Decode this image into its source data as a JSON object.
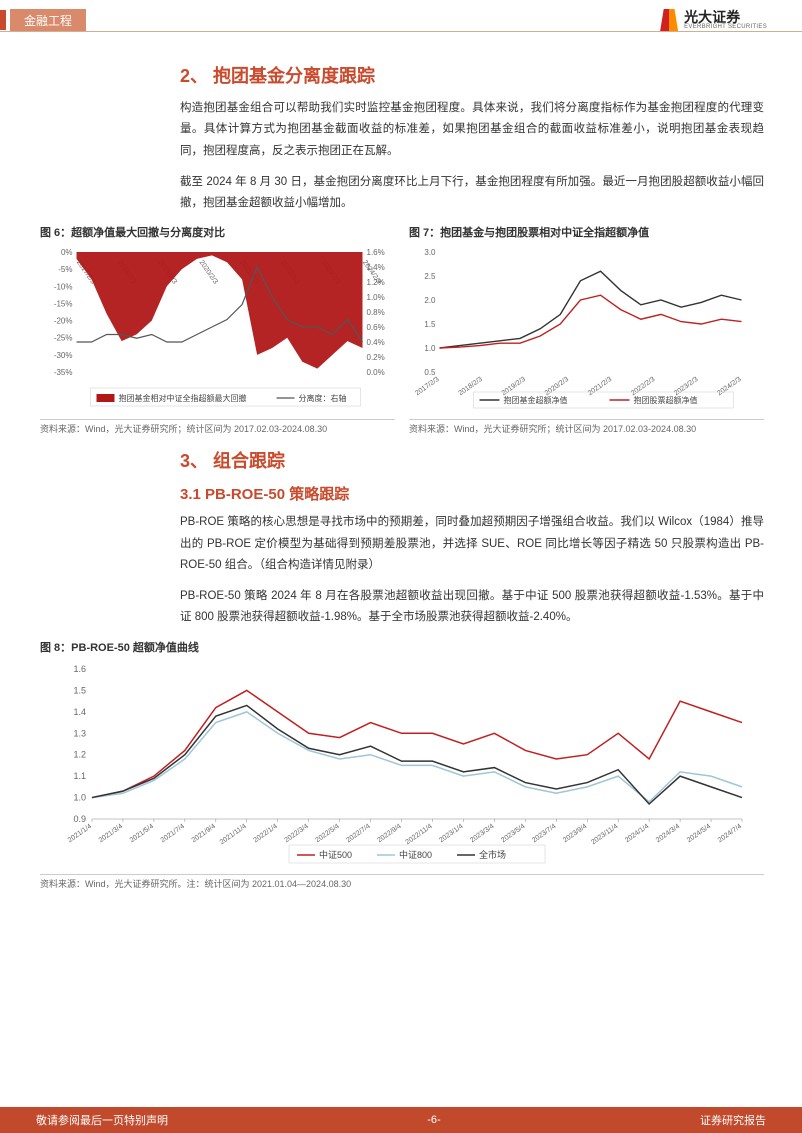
{
  "header": {
    "category": "金融工程",
    "logo_cn": "光大证券",
    "logo_en": "EVERBRIGHT SECURITIES"
  },
  "section2": {
    "title": "2、 抱团基金分离度跟踪",
    "para1": "构造抱团基金组合可以帮助我们实时监控基金抱团程度。具体来说，我们将分离度指标作为基金抱团程度的代理变量。具体计算方式为抱团基金截面收益的标准差，如果抱团基金组合的截面收益标准差小，说明抱团基金表现趋同，抱团程度高，反之表示抱团正在瓦解。",
    "para2": "截至 2024 年 8 月 30 日，基金抱团分离度环比上月下行，基金抱团程度有所加强。最近一月抱团股超额收益小幅回撤，抱团基金超额收益小幅增加。"
  },
  "chart6": {
    "title": "图 6：超额净值最大回撤与分离度对比",
    "source": "资料来源：Wind，光大证券研究所；统计区间为 2017.02.03-2024.08.30",
    "type": "dual-axis-area-line",
    "x_labels": [
      "2017/2/3",
      "2018/2/3",
      "2019/2/3",
      "2020/2/3",
      "2021/2/3",
      "2022/2/3",
      "2023/2/3",
      "2024/2/3"
    ],
    "left_ylim": [
      -35,
      0
    ],
    "left_ytick_step": 5,
    "right_ylim": [
      0,
      1.6
    ],
    "right_ytick_step": 0.2,
    "drawdown_values": [
      -2,
      -8,
      -18,
      -26,
      -24,
      -20,
      -10,
      -5,
      -2,
      -1,
      -3,
      -8,
      -30,
      -28,
      -25,
      -32,
      -34,
      -30,
      -26,
      -28
    ],
    "separation_values": [
      0.4,
      0.4,
      0.5,
      0.5,
      0.45,
      0.5,
      0.4,
      0.4,
      0.5,
      0.6,
      0.7,
      0.9,
      1.4,
      1.0,
      0.7,
      0.6,
      0.6,
      0.5,
      0.7,
      0.4
    ],
    "area_color": "#b01818",
    "line_color": "#555555",
    "legend1": "抱团基金相对中证全指超额最大回撤",
    "legend2": "分离度：右轴",
    "background_color": "#ffffff"
  },
  "chart7": {
    "title": "图 7：抱团基金与抱团股票相对中证全指超额净值",
    "source": "资料来源：Wind，光大证券研究所；统计区间为 2017.02.03-2024.08.30",
    "type": "line",
    "x_labels": [
      "2017/2/3",
      "2018/2/3",
      "2019/2/3",
      "2020/2/3",
      "2021/2/3",
      "2022/2/3",
      "2023/2/3",
      "2024/2/3"
    ],
    "ylim": [
      0.5,
      3.0
    ],
    "ytick_step": 0.5,
    "fund_values": [
      1.0,
      1.05,
      1.1,
      1.15,
      1.2,
      1.4,
      1.7,
      2.4,
      2.6,
      2.2,
      1.9,
      2.0,
      1.85,
      1.95,
      2.1,
      2.0
    ],
    "stock_values": [
      1.0,
      1.02,
      1.05,
      1.1,
      1.1,
      1.25,
      1.5,
      2.0,
      2.1,
      1.8,
      1.6,
      1.7,
      1.55,
      1.5,
      1.6,
      1.55
    ],
    "fund_color": "#333333",
    "stock_color": "#c02020",
    "legend1": "抱团基金超额净值",
    "legend2": "抱团股票超额净值",
    "background_color": "#ffffff"
  },
  "section3": {
    "title": "3、 组合跟踪",
    "sub_title": "3.1   PB-ROE-50 策略跟踪",
    "para1": "PB-ROE 策略的核心思想是寻找市场中的预期差，同时叠加超预期因子增强组合收益。我们以 Wilcox（1984）推导出的 PB-ROE 定价模型为基础得到预期差股票池，并选择 SUE、ROE 同比增长等因子精选 50 只股票构造出 PB-ROE-50 组合。（组合构造详情见附录）",
    "para2": "PB-ROE-50 策略 2024 年 8 月在各股票池超额收益出现回撤。基于中证 500 股票池获得超额收益-1.53%。基于中证 800 股票池获得超额收益-1.98%。基于全市场股票池获得超额收益-2.40%。"
  },
  "chart8": {
    "title": "图 8：PB-ROE-50 超额净值曲线",
    "source": "资料来源：Wind，光大证券研究所。注：统计区间为 2021.01.04—2024.08.30",
    "type": "line",
    "x_labels": [
      "2021/1/4",
      "2021/3/4",
      "2021/5/4",
      "2021/7/4",
      "2021/9/4",
      "2021/11/4",
      "2022/1/4",
      "2022/3/4",
      "2022/5/4",
      "2022/7/4",
      "2022/9/4",
      "2022/11/4",
      "2023/1/4",
      "2023/3/4",
      "2023/5/4",
      "2023/7/4",
      "2023/9/4",
      "2023/11/4",
      "2024/1/4",
      "2024/3/4",
      "2024/5/4",
      "2024/7/4"
    ],
    "ylim": [
      0.9,
      1.6
    ],
    "ytick_step": 0.1,
    "series": {
      "csi500": {
        "color": "#c02020",
        "label": "中证500",
        "values": [
          1.0,
          1.03,
          1.1,
          1.22,
          1.42,
          1.5,
          1.4,
          1.3,
          1.28,
          1.35,
          1.3,
          1.3,
          1.25,
          1.3,
          1.22,
          1.18,
          1.2,
          1.3,
          1.18,
          1.45,
          1.4,
          1.35
        ]
      },
      "csi800": {
        "color": "#9ec5d8",
        "label": "中证800",
        "values": [
          1.0,
          1.02,
          1.08,
          1.18,
          1.35,
          1.4,
          1.3,
          1.22,
          1.18,
          1.2,
          1.15,
          1.15,
          1.1,
          1.12,
          1.05,
          1.02,
          1.05,
          1.1,
          0.98,
          1.12,
          1.1,
          1.05
        ]
      },
      "all": {
        "color": "#333333",
        "label": "全市场",
        "values": [
          1.0,
          1.03,
          1.09,
          1.2,
          1.38,
          1.43,
          1.32,
          1.23,
          1.2,
          1.24,
          1.17,
          1.17,
          1.12,
          1.14,
          1.07,
          1.04,
          1.07,
          1.13,
          0.97,
          1.1,
          1.05,
          1.0
        ]
      }
    },
    "background_color": "#ffffff"
  },
  "footer": {
    "left": "敬请参阅最后一页特别声明",
    "center": "-6-",
    "right": "证券研究报告"
  }
}
